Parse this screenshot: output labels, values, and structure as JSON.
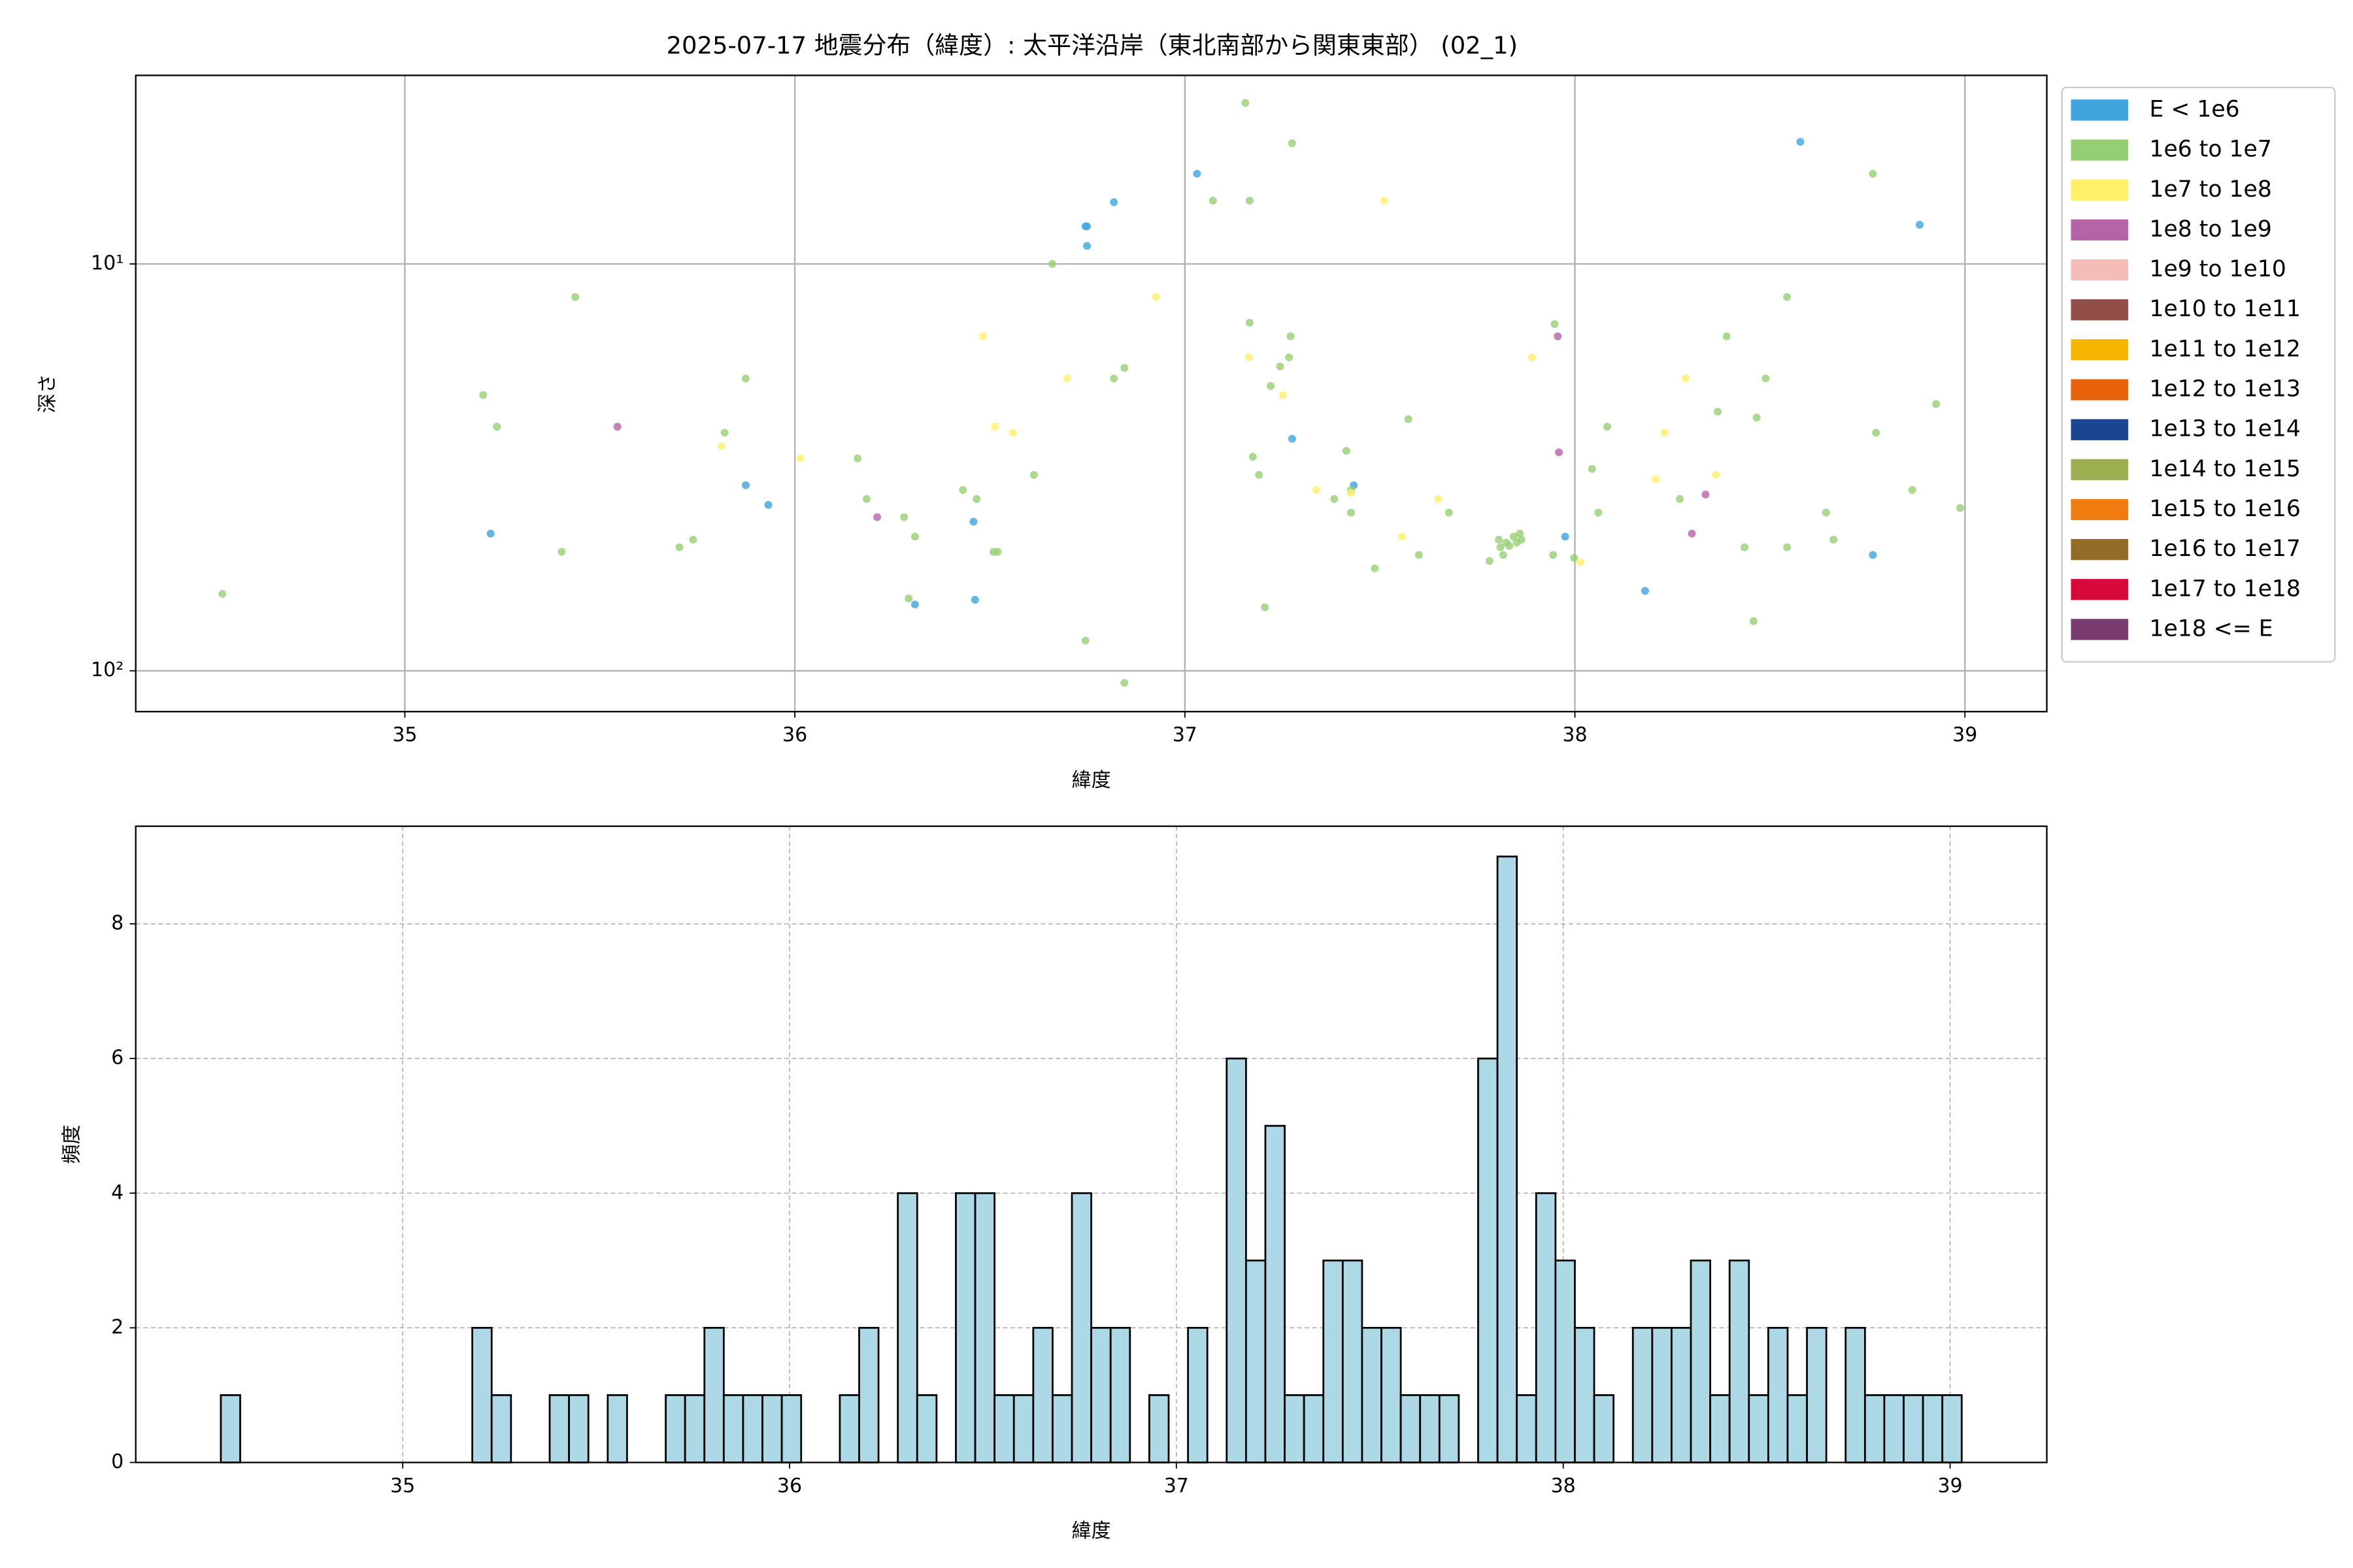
{
  "chart_data": [
    {
      "type": "scatter",
      "title": "2025-07-17 地震分布（緯度）: 太平洋沿岸（東北南部から関東東部） (02_1)",
      "xlabel": "緯度",
      "ylabel": "深さ",
      "yscale": "log",
      "yinverted": true,
      "grid": true,
      "legend": "outside-right",
      "xlim": [
        34.31,
        39.21
      ],
      "ylim": [
        126,
        3.44
      ],
      "xticks": [
        35,
        36,
        37,
        38,
        39
      ],
      "yticks": [
        {
          "value": 10,
          "label": "10¹"
        },
        {
          "value": 100,
          "label": "10²"
        }
      ],
      "series": [
        {
          "name": "E < 1e6",
          "color": "#3fa5dc",
          "x": [
            35.22,
            35.874,
            35.932,
            36.308,
            36.458,
            36.462,
            36.745,
            36.749,
            36.749,
            36.818,
            37.031,
            37.275,
            37.433,
            37.975,
            38.18,
            38.578,
            38.764,
            38.884
          ],
          "values": [
            46.0,
            35.0,
            39.1,
            68.7,
            43.0,
            66.9,
            8.08,
            8.08,
            9.03,
            7.05,
            6.0,
            26.9,
            35.0,
            46.8,
            63.6,
            5.01,
            51.9,
            8.01
          ]
        },
        {
          "name": "1e6 to 1e7",
          "color": "#95cf73",
          "x": [
            34.532,
            35.201,
            35.236,
            35.402,
            35.437,
            35.704,
            35.739,
            35.82,
            35.874,
            36.161,
            36.184,
            36.28,
            36.292,
            36.308,
            36.431,
            36.466,
            36.509,
            36.52,
            36.613,
            36.66,
            36.745,
            36.818,
            36.845,
            36.845,
            37.072,
            37.155,
            37.166,
            37.166,
            37.174,
            37.19,
            37.205,
            37.22,
            37.244,
            37.267,
            37.271,
            37.275,
            37.383,
            37.414,
            37.426,
            37.426,
            37.487,
            37.573,
            37.6,
            37.677,
            37.781,
            37.805,
            37.809,
            37.816,
            37.824,
            37.832,
            37.843,
            37.851,
            37.859,
            37.863,
            37.944,
            37.948,
            37.998,
            38.044,
            38.06,
            38.083,
            38.269,
            38.366,
            38.389,
            38.435,
            38.458,
            38.466,
            38.489,
            38.544,
            38.544,
            38.644,
            38.663,
            38.764,
            38.772,
            38.865,
            38.926,
            38.988
          ],
          "values": [
            64.7,
            21.0,
            25.12,
            51.0,
            12.06,
            49.7,
            47.6,
            26.0,
            19.12,
            30.05,
            37.82,
            41.9,
            66.4,
            46.8,
            35.94,
            37.82,
            51.0,
            51.0,
            33.0,
            10.0,
            84.3,
            19.12,
            18.01,
            107.1,
            6.99,
            4.02,
            13.94,
            6.99,
            29.8,
            33.0,
            69.8,
            19.95,
            17.86,
            16.97,
            15.06,
            5.05,
            37.82,
            28.8,
            35.94,
            40.85,
            55.98,
            24.07,
            51.9,
            40.85,
            53.7,
            47.6,
            49.7,
            51.9,
            48.4,
            49.3,
            46.8,
            48.4,
            46.0,
            47.6,
            51.9,
            14.06,
            52.8,
            31.9,
            40.85,
            25.12,
            37.82,
            23.07,
            15.06,
            49.7,
            75.5,
            23.87,
            19.12,
            12.06,
            49.7,
            40.85,
            47.6,
            6.0,
            26.0,
            35.94,
            22.1,
            39.81
          ]
        },
        {
          "name": "1e7 to 1e8",
          "color": "#fff06a",
          "x": [
            35.812,
            36.014,
            36.482,
            36.513,
            36.559,
            36.698,
            36.926,
            37.164,
            37.251,
            37.337,
            37.426,
            37.511,
            37.557,
            37.65,
            37.89,
            38.014,
            38.207,
            38.23,
            38.284,
            38.362
          ],
          "values": [
            28.06,
            30.05,
            15.06,
            25.12,
            26.0,
            19.12,
            12.06,
            16.97,
            21.0,
            35.94,
            36.56,
            6.99,
            46.8,
            37.82,
            16.97,
            54.1,
            33.85,
            26.0,
            19.12,
            33.0
          ]
        },
        {
          "name": "1e8 to 1e9",
          "color": "#b565a7",
          "x": [
            35.545,
            36.211,
            37.956,
            37.959,
            38.3,
            38.335
          ],
          "values": [
            25.12,
            41.9,
            15.06,
            29.04,
            46.0,
            36.87
          ]
        },
        {
          "name": "1e9 to 1e10",
          "color": "#f4bdb8",
          "x": [],
          "values": []
        },
        {
          "name": "1e10 to 1e11",
          "color": "#934e4a",
          "x": [],
          "values": []
        },
        {
          "name": "1e11 to 1e12",
          "color": "#f7b500",
          "x": [],
          "values": []
        },
        {
          "name": "1e12 to 1e13",
          "color": "#e8620a",
          "x": [],
          "values": []
        },
        {
          "name": "1e13 to 1e14",
          "color": "#1a4590",
          "x": [],
          "values": []
        },
        {
          "name": "1e14 to 1e15",
          "color": "#9caf51",
          "x": [],
          "values": []
        },
        {
          "name": "1e15 to 1e16",
          "color": "#f07c10",
          "x": [],
          "values": []
        },
        {
          "name": "1e16 to 1e17",
          "color": "#936c28",
          "x": [],
          "values": []
        },
        {
          "name": "1e17 to 1e18",
          "color": "#d8093b",
          "x": [],
          "values": []
        },
        {
          "name": "1e18 <= E",
          "color": "#7a3c6f",
          "x": [],
          "values": []
        }
      ]
    },
    {
      "type": "histogram",
      "xlabel": "緯度",
      "ylabel": "頻度",
      "grid": true,
      "color": "#add8e6",
      "edgecolor": "#000000",
      "xlim": [
        34.31,
        39.25
      ],
      "ylim": [
        0,
        9.45
      ],
      "xticks": [
        35,
        36,
        37,
        38,
        39
      ],
      "yticks": [
        0,
        2,
        4,
        6,
        8
      ],
      "bins": [
        34.53,
        34.58,
        34.63,
        34.68,
        34.73,
        34.78,
        34.83,
        34.88,
        34.93,
        34.98,
        35.03,
        35.08,
        35.13,
        35.18,
        35.23,
        35.28,
        35.33,
        35.38,
        35.43,
        35.48,
        35.53,
        35.58,
        35.63,
        35.68,
        35.73,
        35.78,
        35.83,
        35.88,
        35.93,
        35.98,
        36.03,
        36.08,
        36.13,
        36.18,
        36.23,
        36.28,
        36.33,
        36.38,
        36.43,
        36.48,
        36.53,
        36.58,
        36.63,
        36.68,
        36.73,
        36.78,
        36.83,
        36.88,
        36.93,
        36.98,
        37.03,
        37.08,
        37.13,
        37.18,
        37.23,
        37.28,
        37.33,
        37.38,
        37.43,
        37.48,
        37.53,
        37.58,
        37.63,
        37.68,
        37.73,
        37.78,
        37.83,
        37.88,
        37.93,
        37.98,
        38.03,
        38.08,
        38.13,
        38.18,
        38.23,
        38.28,
        38.33,
        38.38,
        38.43,
        38.48,
        38.53,
        38.58,
        38.63,
        38.68,
        38.73,
        38.78,
        38.83,
        38.88,
        38.93,
        38.98,
        39.03
      ],
      "values": [
        1,
        0,
        0,
        0,
        0,
        0,
        0,
        0,
        0,
        0,
        0,
        0,
        0,
        2,
        1,
        0,
        0,
        1,
        1,
        0,
        1,
        0,
        0,
        1,
        1,
        2,
        1,
        1,
        1,
        1,
        0,
        0,
        1,
        2,
        0,
        4,
        1,
        0,
        4,
        4,
        1,
        1,
        2,
        1,
        4,
        2,
        2,
        0,
        1,
        0,
        2,
        0,
        6,
        3,
        5,
        1,
        1,
        3,
        3,
        2,
        2,
        1,
        1,
        1,
        0,
        6,
        9,
        1,
        4,
        3,
        2,
        1,
        0,
        2,
        2,
        2,
        3,
        1,
        3,
        1,
        2,
        1,
        2,
        0,
        2,
        1,
        1,
        1,
        1,
        1
      ]
    }
  ]
}
